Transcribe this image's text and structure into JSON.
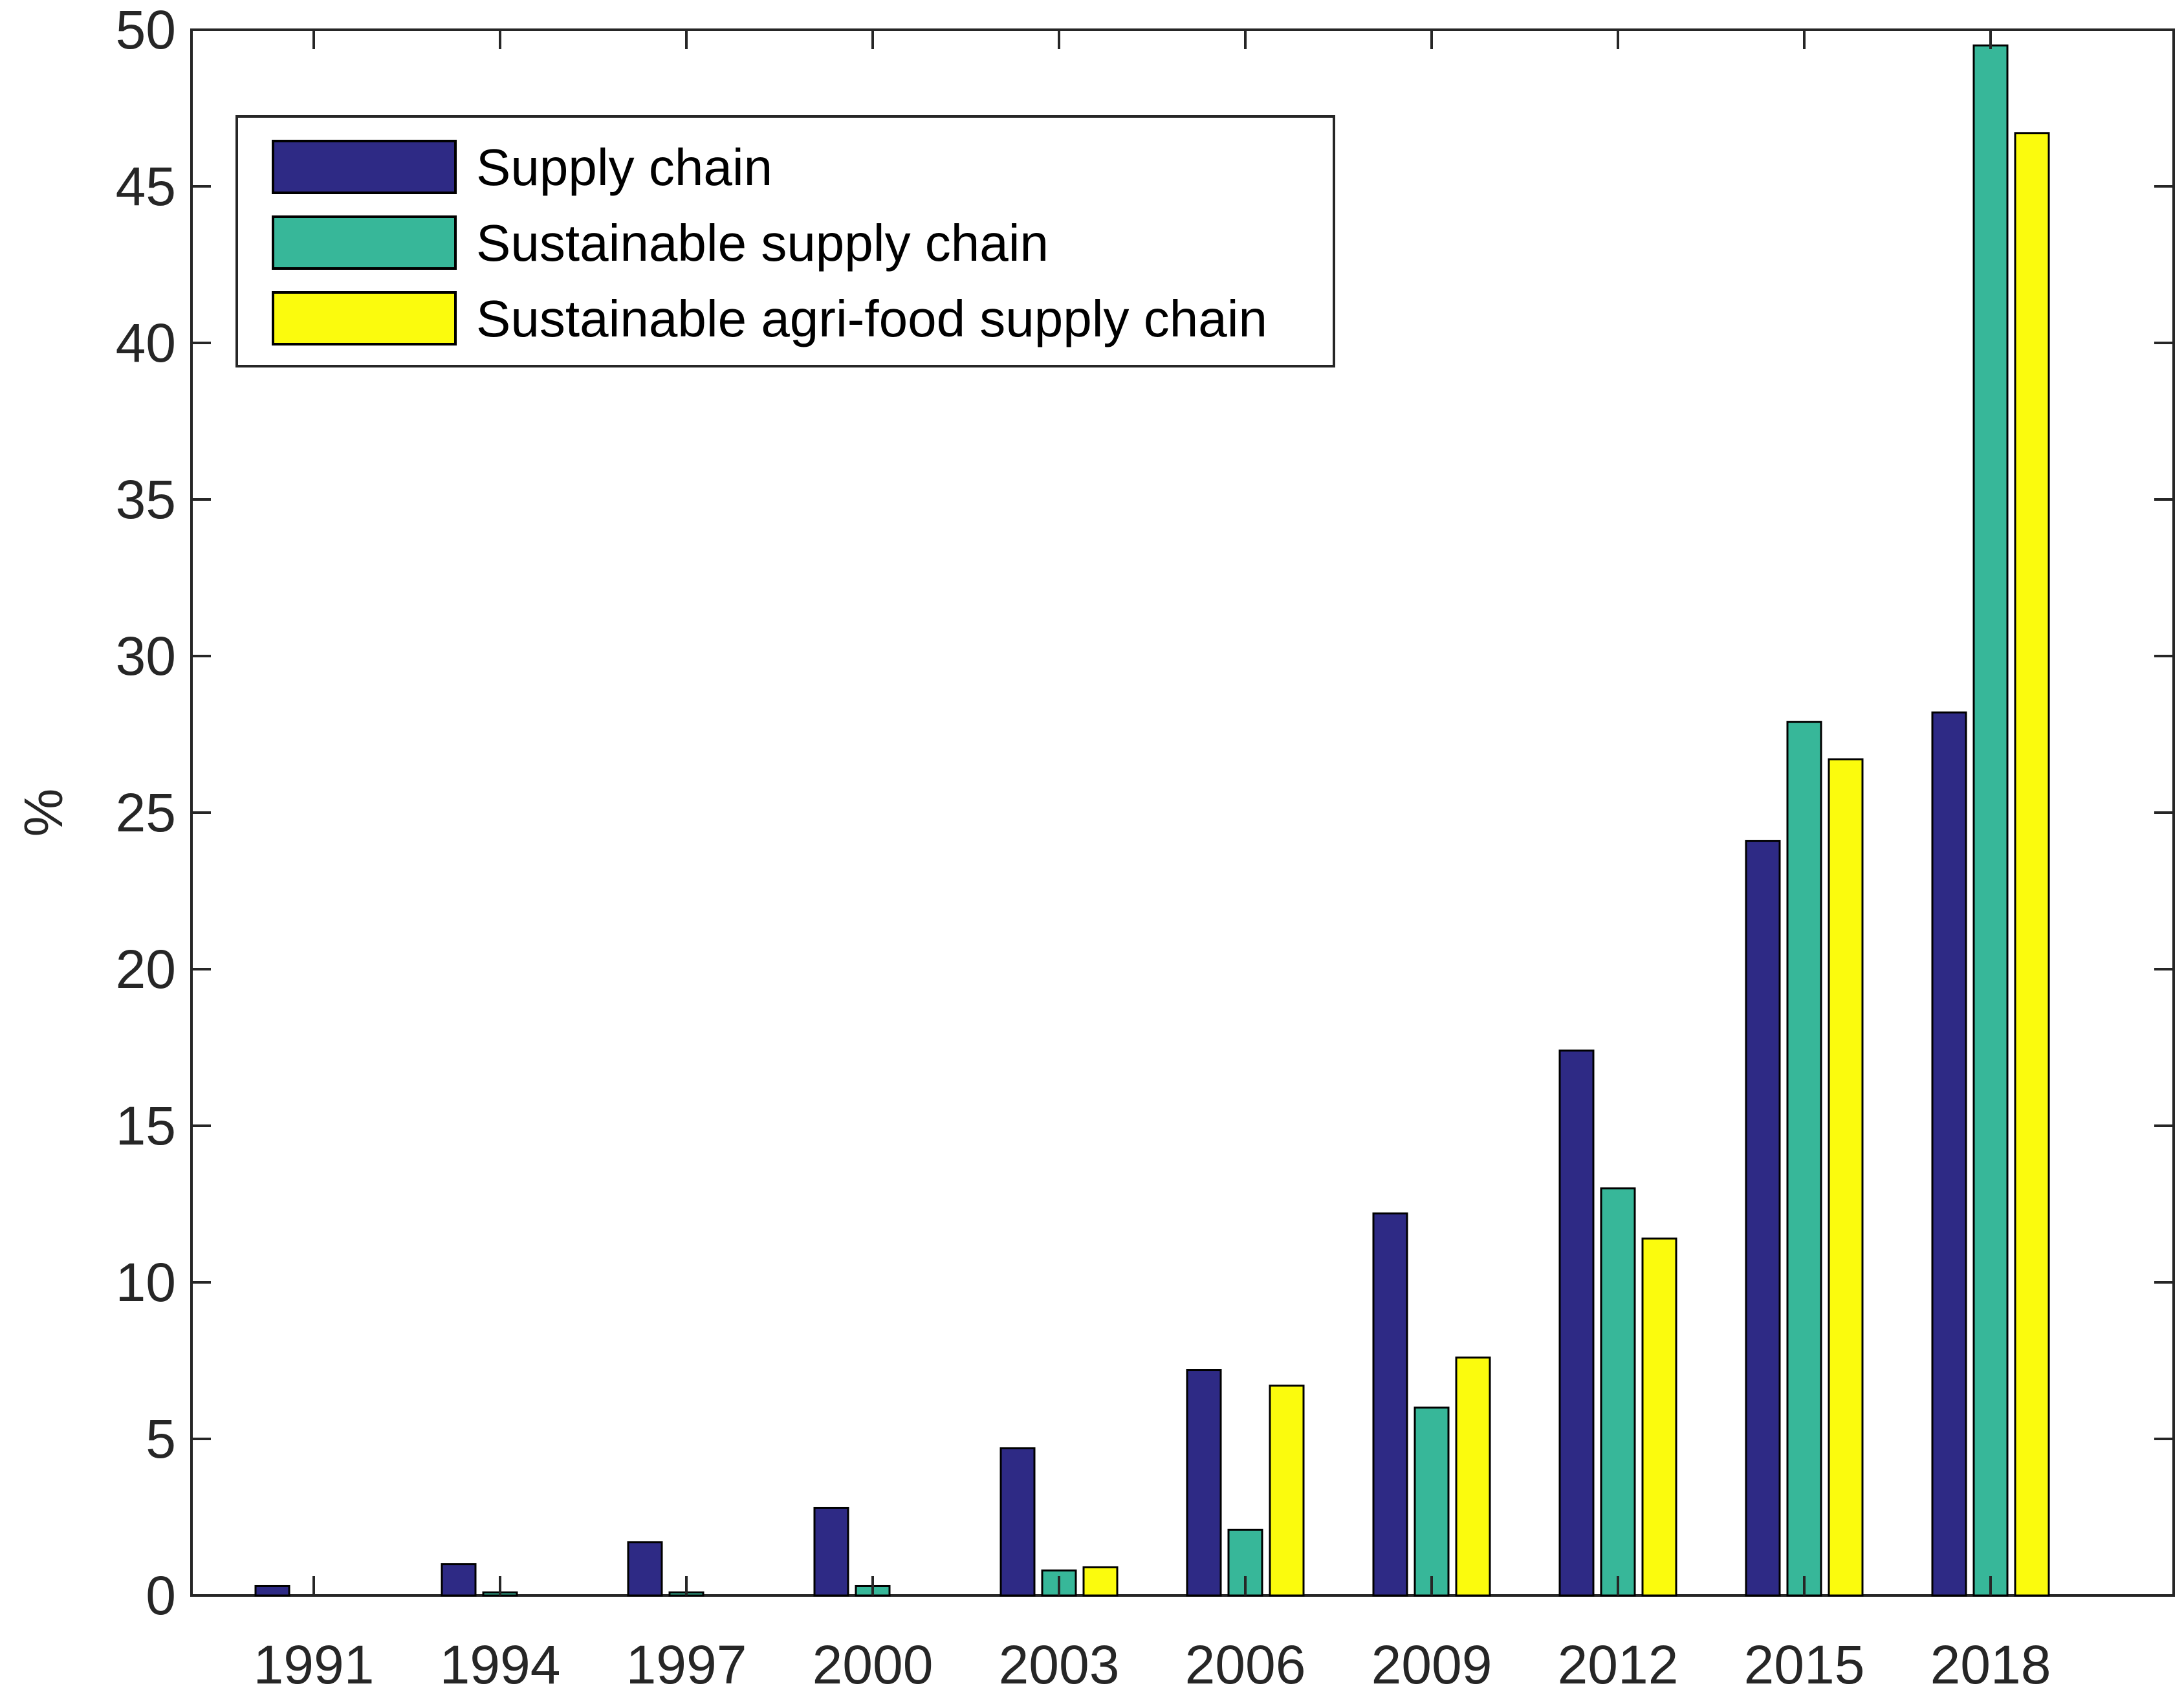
{
  "chart_data": {
    "type": "bar",
    "categories": [
      "1991",
      "1994",
      "1997",
      "2000",
      "2003",
      "2006",
      "2009",
      "2012",
      "2015",
      "2018"
    ],
    "series": [
      {
        "name": "Supply chain",
        "color": "#2e2a85",
        "values": [
          0.3,
          1.0,
          1.7,
          2.8,
          4.7,
          7.2,
          12.2,
          17.4,
          24.1,
          28.2
        ]
      },
      {
        "name": "Sustainable supply chain",
        "color": "#37b799",
        "values": [
          0.0,
          0.1,
          0.1,
          0.3,
          0.8,
          2.1,
          6.0,
          13.0,
          27.9,
          49.5
        ]
      },
      {
        "name": "Sustainable agri-food supply chain",
        "color": "#fbfb0d",
        "values": [
          0.0,
          0.0,
          0.0,
          0.0,
          0.9,
          6.7,
          7.6,
          11.4,
          26.7,
          46.7
        ]
      }
    ],
    "title": "",
    "xlabel": "",
    "ylabel": "%",
    "ylim": [
      0,
      50
    ],
    "yticks": [
      "0",
      "5",
      "10",
      "15",
      "20",
      "25",
      "30",
      "35",
      "40",
      "45",
      "50"
    ],
    "grid": false,
    "legend_position": "top-left"
  }
}
